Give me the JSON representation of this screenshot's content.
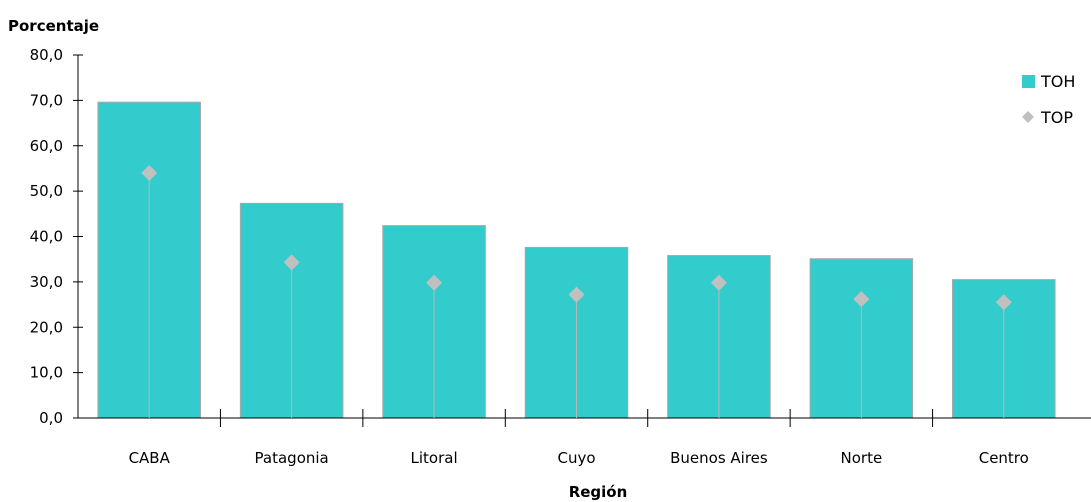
{
  "chart_data": {
    "type": "bar",
    "ylabel": "Porcentaje",
    "xlabel": "Región",
    "ylim": [
      0,
      80
    ],
    "yticks": [
      "0,0",
      "10,0",
      "20,0",
      "30,0",
      "40,0",
      "50,0",
      "60,0",
      "70,0",
      "80,0"
    ],
    "grid": false,
    "legend_position": "top-right",
    "categories": [
      "CABA",
      "Patagonia",
      "Litoral",
      "Cuyo",
      "Buenos Aires",
      "Norte",
      "Centro"
    ],
    "series": [
      {
        "name": "TOH",
        "marker": "bar",
        "color": "#33CCCC",
        "values": [
          69.6,
          47.3,
          42.4,
          37.6,
          35.8,
          35.1,
          30.5
        ]
      },
      {
        "name": "TOP",
        "marker": "diamond",
        "color": "#C0C0C0",
        "values": [
          54.0,
          34.3,
          29.8,
          27.2,
          29.8,
          26.2,
          25.5
        ]
      }
    ]
  }
}
